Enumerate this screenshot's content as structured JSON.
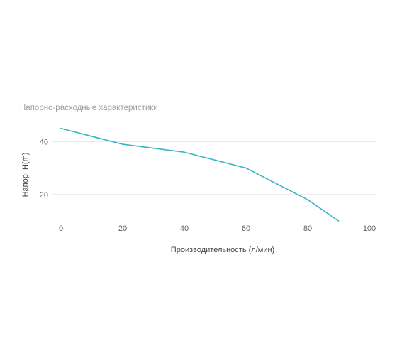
{
  "chart_data": {
    "type": "line",
    "title": "Напорно-расходные характеристики",
    "xlabel": "Производительность (л/мин)",
    "ylabel": "Напор, H(m)",
    "x_ticks": [
      "0",
      "20",
      "40",
      "60",
      "80",
      "100"
    ],
    "y_ticks": [
      "20",
      "40"
    ],
    "xlim": [
      0,
      100
    ],
    "ylim": [
      10,
      46
    ],
    "grid": true,
    "legend": "none",
    "series": [
      {
        "color": "#3bb3c8",
        "points": [
          {
            "x": 0,
            "y": 45
          },
          {
            "x": 20,
            "y": 39
          },
          {
            "x": 40,
            "y": 36
          },
          {
            "x": 60,
            "y": 30
          },
          {
            "x": 80,
            "y": 18
          },
          {
            "x": 90,
            "y": 10
          }
        ]
      }
    ]
  }
}
